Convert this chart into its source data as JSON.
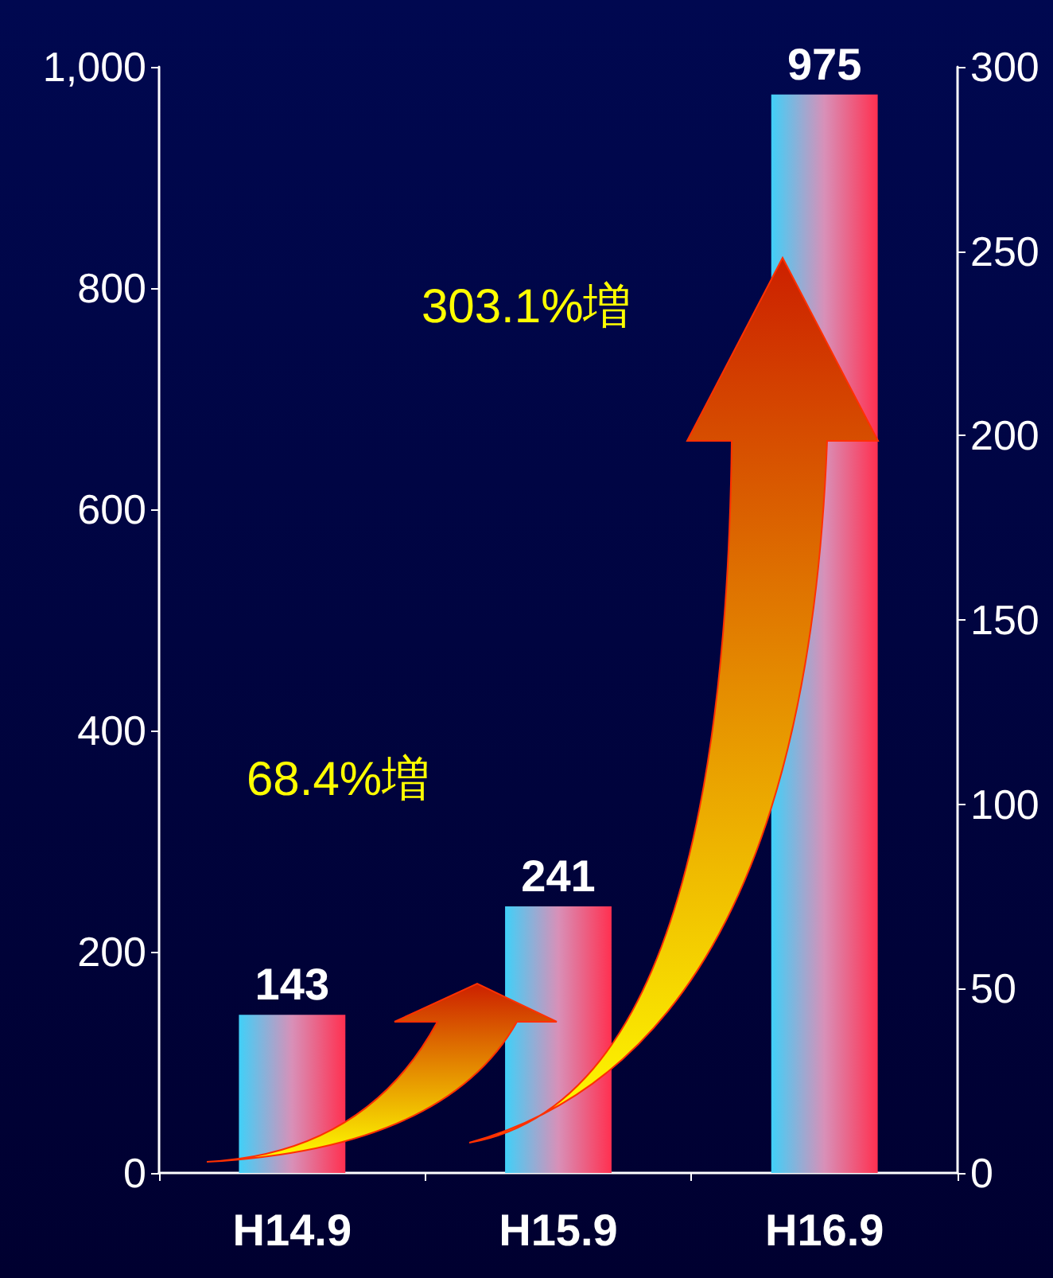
{
  "chart_data": {
    "type": "bar",
    "categories": [
      "H14.9",
      "H15.9",
      "H16.9"
    ],
    "values": [
      143,
      241,
      975
    ],
    "color": "#ff3050",
    "data_labels": true,
    "ylim": [
      0,
      1000
    ],
    "yticks": [
      0,
      200,
      400,
      600,
      800,
      {
        "value": 1000,
        "label": "1,000"
      }
    ],
    "y2lim": [
      0,
      300
    ],
    "y2ticks": [
      0,
      50,
      100,
      150,
      200,
      250,
      300
    ],
    "grid": false,
    "annotations": [
      "68.4%増",
      "303.1%増"
    ]
  }
}
